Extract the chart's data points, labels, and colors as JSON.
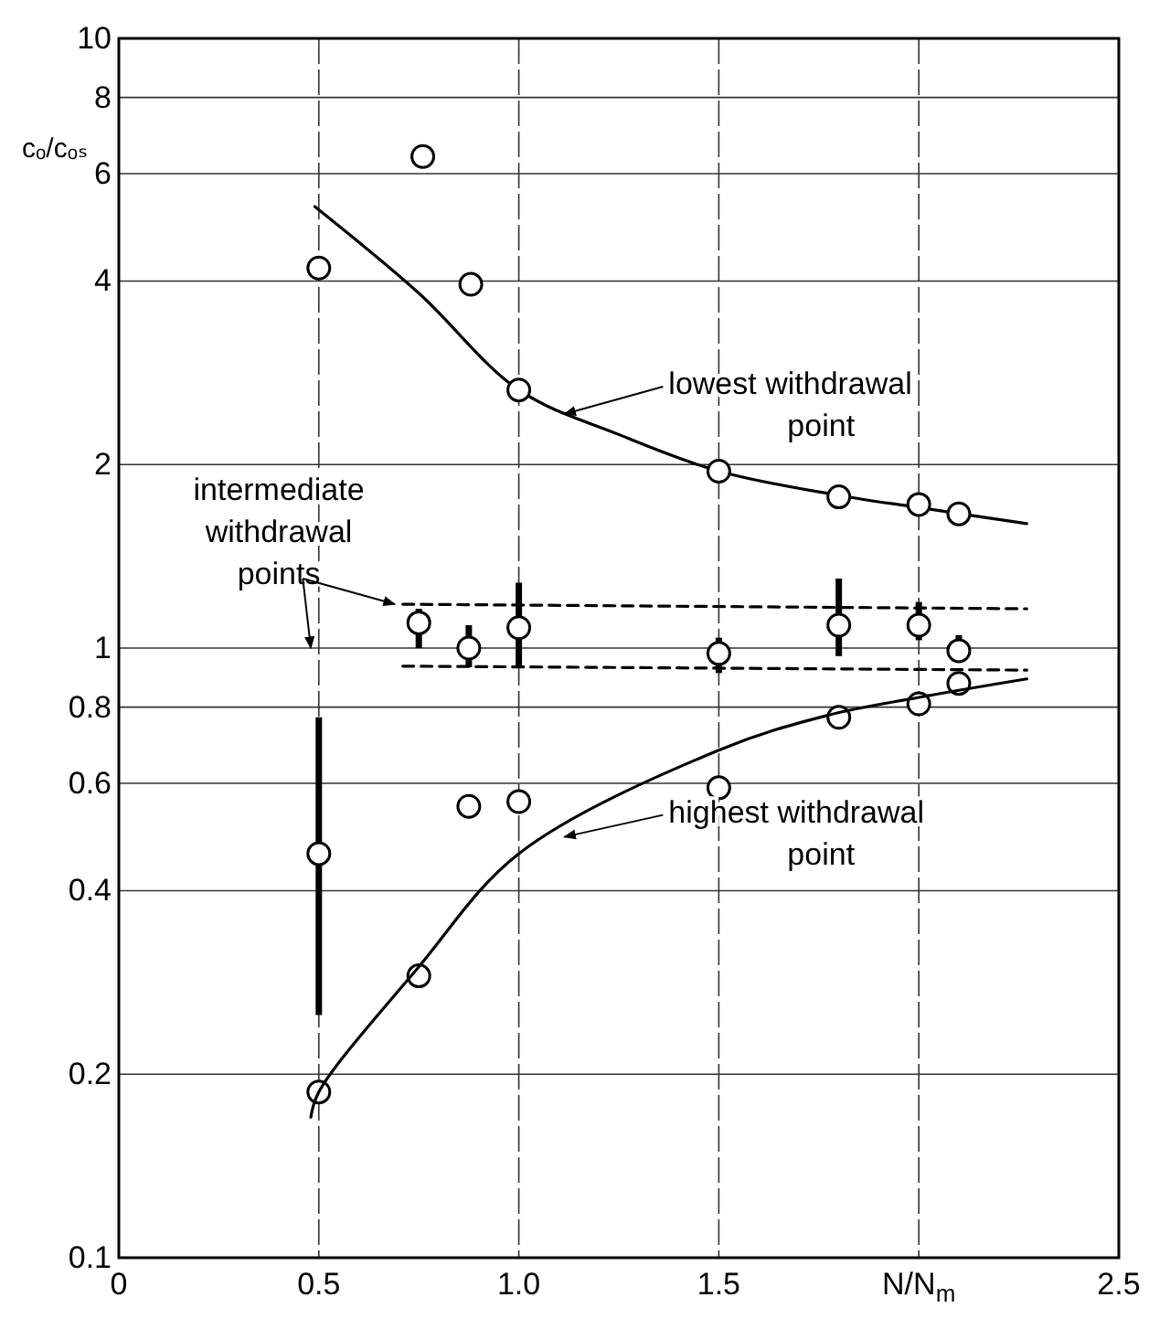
{
  "chart_data": {
    "type": "scatter",
    "xlabel": "N/N$_{m}$",
    "ylabel": "cₒ/cₒₛ",
    "log": "y",
    "grid": true,
    "xlim": [
      0,
      2.5
    ],
    "ylim": [
      0.1,
      10
    ],
    "xticks": [
      0,
      {
        "value": 0.5,
        "label": "0.5"
      },
      {
        "value": 1,
        "label": "1.0"
      },
      1.5,
      {
        "value": 2,
        "label": null
      },
      2.5
    ],
    "yticks": [
      0.1,
      0.2,
      0.4,
      0.6,
      0.8,
      1,
      2,
      4,
      6,
      8,
      10
    ],
    "annotations": [
      {
        "text": "lowest withdrawal point",
        "x": 1.1,
        "y": 2.47
      },
      "highest withdrawal point",
      "intermediate withdrawal points"
    ],
    "series": [
      {
        "type": "line",
        "color": "#000000",
        "marker": "none",
        "line_style": "solid",
        "x": [
          0.49,
          0.75,
          1.0,
          1.25,
          1.5,
          1.8,
          2.0,
          2.27
        ],
        "values": [
          5.3,
          3.82,
          2.65,
          2.24,
          1.95,
          1.78,
          1.7,
          1.6
        ]
      },
      {
        "color": "#000000",
        "marker": "circle",
        "x": [
          0.5,
          0.76,
          0.88,
          1.0,
          1.5,
          1.8,
          2.0,
          2.1
        ],
        "values": [
          4.2,
          6.4,
          3.95,
          2.65,
          1.95,
          1.77,
          1.72,
          1.66
        ]
      },
      {
        "color": "#000000",
        "marker": "circle",
        "x": [
          0.5,
          0.75,
          0.875,
          1.0,
          1.5,
          1.8,
          2.0,
          2.1
        ],
        "values": [
          0.46,
          1.1,
          1.0,
          1.08,
          0.98,
          1.09,
          1.09,
          0.99
        ],
        "errors": [
          [
            0.25,
            0.77
          ],
          [
            1.0,
            1.16
          ],
          [
            0.93,
            1.09
          ],
          [
            0.93,
            1.28
          ],
          [
            0.91,
            1.04
          ],
          [
            0.97,
            1.3
          ],
          [
            1.03,
            1.19
          ],
          [
            0.95,
            1.05
          ]
        ]
      },
      {
        "color": "#000000",
        "marker": "circle",
        "x": [
          0.5,
          0.75,
          0.875,
          1.0,
          1.5,
          1.8,
          2.0,
          2.1
        ],
        "values": [
          0.187,
          0.29,
          0.55,
          0.56,
          0.59,
          0.77,
          0.81,
          0.875
        ]
      },
      {
        "type": "line",
        "color": "#000000",
        "marker": "none",
        "line_style": "solid",
        "x": [
          0.48,
          0.5,
          0.75,
          1.0,
          1.5,
          1.77,
          2.0,
          2.27
        ],
        "values": [
          0.17,
          0.187,
          0.3,
          0.46,
          0.68,
          0.775,
          0.83,
          0.89
        ]
      },
      {
        "type": "line",
        "color": "#000000",
        "marker": "none",
        "line_style": "dashed",
        "x": [
          0.71,
          2.27
        ],
        "values": [
          1.18,
          1.16
        ]
      },
      {
        "type": "line",
        "color": "#000000",
        "marker": "none",
        "line_style": "dashed",
        "x": [
          0.71,
          2.27
        ],
        "values": [
          0.934,
          0.92
        ]
      }
    ]
  }
}
